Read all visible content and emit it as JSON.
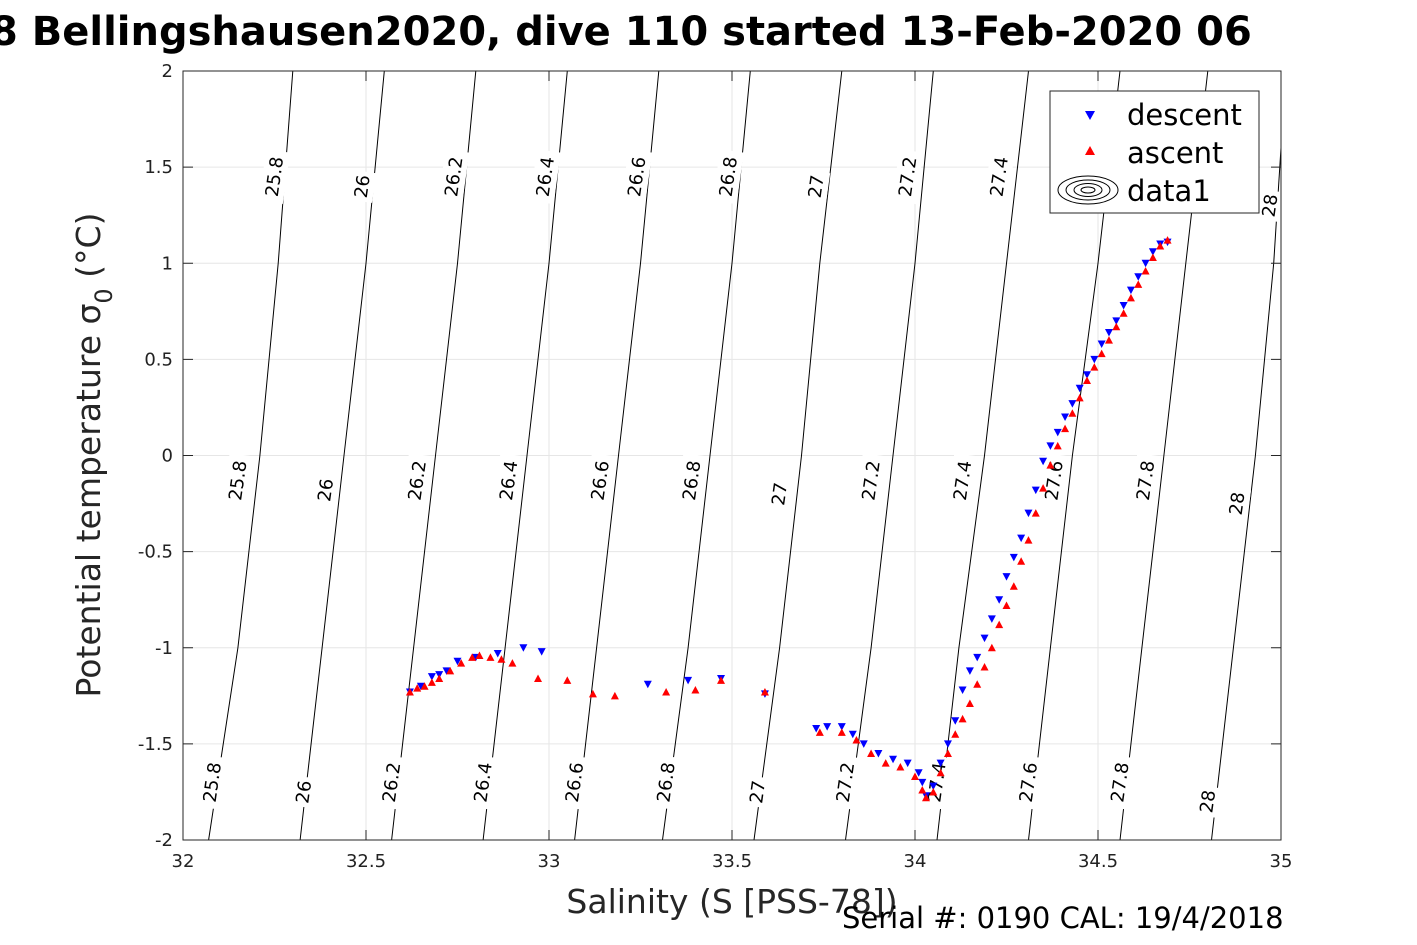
{
  "chart_data": {
    "type": "scatter",
    "title": "8 Bellingshausen2020, dive 110 started 13-Feb-2020 06",
    "xlabel": "Salinity (S [PSS-78])",
    "ylabel": "Potential temperature σ",
    "ylabel_subscript": "0",
    "ylabel_unit": " (°C)",
    "xlim": [
      32,
      35
    ],
    "ylim": [
      -2,
      2
    ],
    "x_ticks": [
      32,
      32.5,
      33,
      33.5,
      34,
      34.5,
      35
    ],
    "y_ticks": [
      -2,
      -1.5,
      -1,
      -0.5,
      0,
      0.5,
      1,
      1.5,
      2
    ],
    "grid": true,
    "legend_position": "top-right",
    "legend": [
      "descent",
      "ascent",
      "data1"
    ],
    "density_contours": [
      {
        "level": 25.8,
        "points": [
          [
            32.07,
            -2
          ],
          [
            32.15,
            -1.0
          ],
          [
            32.21,
            0.0
          ],
          [
            32.26,
            1.0
          ],
          [
            32.3,
            2.0
          ]
        ]
      },
      {
        "level": 26.0,
        "points": [
          [
            32.32,
            -2
          ],
          [
            32.38,
            -1.0
          ],
          [
            32.44,
            0.0
          ],
          [
            32.5,
            1.0
          ],
          [
            32.55,
            2.0
          ]
        ]
      },
      {
        "level": 26.2,
        "points": [
          [
            32.57,
            -2
          ],
          [
            32.63,
            -1.0
          ],
          [
            32.69,
            0.0
          ],
          [
            32.75,
            1.0
          ],
          [
            32.8,
            2.0
          ]
        ]
      },
      {
        "level": 26.4,
        "points": [
          [
            32.82,
            -2
          ],
          [
            32.88,
            -1.0
          ],
          [
            32.94,
            0.0
          ],
          [
            33.0,
            1.0
          ],
          [
            33.05,
            2.0
          ]
        ]
      },
      {
        "level": 26.6,
        "points": [
          [
            33.07,
            -2
          ],
          [
            33.13,
            -1.0
          ],
          [
            33.19,
            0.0
          ],
          [
            33.25,
            1.0
          ],
          [
            33.3,
            2.0
          ]
        ]
      },
      {
        "level": 26.8,
        "points": [
          [
            33.31,
            -2
          ],
          [
            33.38,
            -1.0
          ],
          [
            33.44,
            0.0
          ],
          [
            33.5,
            1.0
          ],
          [
            33.55,
            2.0
          ]
        ]
      },
      {
        "level": 27.0,
        "points": [
          [
            33.56,
            -2
          ],
          [
            33.63,
            -1.0
          ],
          [
            33.69,
            0.0
          ],
          [
            33.74,
            1.0
          ],
          [
            33.8,
            2.0
          ]
        ]
      },
      {
        "level": 27.2,
        "points": [
          [
            33.81,
            -2
          ],
          [
            33.88,
            -1.0
          ],
          [
            33.94,
            0.0
          ],
          [
            34.0,
            1.0
          ],
          [
            34.05,
            2.0
          ]
        ]
      },
      {
        "level": 27.4,
        "points": [
          [
            34.06,
            -2
          ],
          [
            34.12,
            -1.0
          ],
          [
            34.19,
            0.0
          ],
          [
            34.25,
            1.0
          ],
          [
            34.31,
            2.0
          ]
        ]
      },
      {
        "level": 27.6,
        "points": [
          [
            34.31,
            -2
          ],
          [
            34.37,
            -1.0
          ],
          [
            34.43,
            0.0
          ],
          [
            34.5,
            1.0
          ],
          [
            34.56,
            2.0
          ]
        ]
      },
      {
        "level": 27.8,
        "points": [
          [
            34.56,
            -2
          ],
          [
            34.62,
            -1.0
          ],
          [
            34.68,
            0.0
          ],
          [
            34.74,
            1.0
          ],
          [
            34.8,
            2.0
          ]
        ]
      },
      {
        "level": 28.0,
        "points": [
          [
            34.81,
            -2
          ],
          [
            34.87,
            -1.0
          ],
          [
            34.93,
            0.0
          ],
          [
            34.98,
            1.0
          ],
          [
            35.0,
            1.6
          ]
        ]
      }
    ],
    "contour_labels": [
      {
        "text": "25.8",
        "x": 32.08,
        "y": -1.7
      },
      {
        "text": "26",
        "x": 32.33,
        "y": -1.75
      },
      {
        "text": "26.2",
        "x": 32.57,
        "y": -1.7
      },
      {
        "text": "26.4",
        "x": 32.82,
        "y": -1.7
      },
      {
        "text": "26.6",
        "x": 33.07,
        "y": -1.7
      },
      {
        "text": "26.8",
        "x": 33.32,
        "y": -1.7
      },
      {
        "text": "27",
        "x": 33.57,
        "y": -1.75
      },
      {
        "text": "27.2",
        "x": 33.81,
        "y": -1.7
      },
      {
        "text": "27.4",
        "x": 34.06,
        "y": -1.7
      },
      {
        "text": "27.6",
        "x": 34.31,
        "y": -1.7
      },
      {
        "text": "27.8",
        "x": 34.56,
        "y": -1.7
      },
      {
        "text": "28",
        "x": 34.8,
        "y": -1.8
      },
      {
        "text": "25.8",
        "x": 32.15,
        "y": -0.13
      },
      {
        "text": "26",
        "x": 32.39,
        "y": -0.18
      },
      {
        "text": "26.2",
        "x": 32.64,
        "y": -0.13
      },
      {
        "text": "26.4",
        "x": 32.89,
        "y": -0.13
      },
      {
        "text": "26.6",
        "x": 33.14,
        "y": -0.13
      },
      {
        "text": "26.8",
        "x": 33.39,
        "y": -0.13
      },
      {
        "text": "27",
        "x": 33.63,
        "y": -0.2
      },
      {
        "text": "27.2",
        "x": 33.88,
        "y": -0.13
      },
      {
        "text": "27.4",
        "x": 34.13,
        "y": -0.13
      },
      {
        "text": "27.6",
        "x": 34.38,
        "y": -0.13
      },
      {
        "text": "27.8",
        "x": 34.63,
        "y": -0.13
      },
      {
        "text": "28",
        "x": 34.88,
        "y": -0.25
      },
      {
        "text": "25.8",
        "x": 32.25,
        "y": 1.45
      },
      {
        "text": "26",
        "x": 32.49,
        "y": 1.4
      },
      {
        "text": "26.2",
        "x": 32.74,
        "y": 1.45
      },
      {
        "text": "26.4",
        "x": 32.99,
        "y": 1.45
      },
      {
        "text": "26.6",
        "x": 33.24,
        "y": 1.45
      },
      {
        "text": "26.8",
        "x": 33.49,
        "y": 1.45
      },
      {
        "text": "27",
        "x": 33.73,
        "y": 1.4
      },
      {
        "text": "27.2",
        "x": 33.98,
        "y": 1.45
      },
      {
        "text": "27.4",
        "x": 34.23,
        "y": 1.45
      },
      {
        "text": "28",
        "x": 34.97,
        "y": 1.3
      }
    ],
    "series": [
      {
        "name": "descent",
        "color": "#0000ff",
        "marker": "triangle-down",
        "points": [
          [
            32.62,
            -1.23
          ],
          [
            32.65,
            -1.2
          ],
          [
            32.68,
            -1.15
          ],
          [
            32.7,
            -1.14
          ],
          [
            32.72,
            -1.12
          ],
          [
            32.75,
            -1.07
          ],
          [
            32.8,
            -1.05
          ],
          [
            32.86,
            -1.03
          ],
          [
            32.93,
            -1.0
          ],
          [
            32.98,
            -1.02
          ],
          [
            33.27,
            -1.19
          ],
          [
            33.38,
            -1.17
          ],
          [
            33.47,
            -1.16
          ],
          [
            33.59,
            -1.24
          ],
          [
            33.73,
            -1.42
          ],
          [
            33.76,
            -1.41
          ],
          [
            33.8,
            -1.41
          ],
          [
            33.83,
            -1.45
          ],
          [
            33.86,
            -1.5
          ],
          [
            33.9,
            -1.55
          ],
          [
            33.94,
            -1.58
          ],
          [
            33.98,
            -1.6
          ],
          [
            34.01,
            -1.65
          ],
          [
            34.02,
            -1.7
          ],
          [
            34.03,
            -1.77
          ],
          [
            34.05,
            -1.72
          ],
          [
            34.07,
            -1.6
          ],
          [
            34.09,
            -1.5
          ],
          [
            34.11,
            -1.38
          ],
          [
            34.13,
            -1.22
          ],
          [
            34.15,
            -1.12
          ],
          [
            34.17,
            -1.05
          ],
          [
            34.19,
            -0.95
          ],
          [
            34.21,
            -0.85
          ],
          [
            34.23,
            -0.75
          ],
          [
            34.25,
            -0.63
          ],
          [
            34.27,
            -0.53
          ],
          [
            34.29,
            -0.43
          ],
          [
            34.31,
            -0.3
          ],
          [
            34.33,
            -0.18
          ],
          [
            34.35,
            -0.03
          ],
          [
            34.37,
            0.05
          ],
          [
            34.39,
            0.12
          ],
          [
            34.41,
            0.2
          ],
          [
            34.43,
            0.27
          ],
          [
            34.45,
            0.35
          ],
          [
            34.47,
            0.42
          ],
          [
            34.49,
            0.5
          ],
          [
            34.51,
            0.58
          ],
          [
            34.53,
            0.64
          ],
          [
            34.55,
            0.7
          ],
          [
            34.57,
            0.78
          ],
          [
            34.59,
            0.86
          ],
          [
            34.61,
            0.93
          ],
          [
            34.63,
            1.0
          ],
          [
            34.65,
            1.06
          ],
          [
            34.67,
            1.1
          ],
          [
            34.69,
            1.11
          ]
        ]
      },
      {
        "name": "ascent",
        "color": "#ff0000",
        "marker": "triangle-up",
        "points": [
          [
            32.62,
            -1.23
          ],
          [
            32.64,
            -1.21
          ],
          [
            32.66,
            -1.2
          ],
          [
            32.68,
            -1.18
          ],
          [
            32.7,
            -1.16
          ],
          [
            32.73,
            -1.12
          ],
          [
            32.76,
            -1.08
          ],
          [
            32.79,
            -1.05
          ],
          [
            32.81,
            -1.04
          ],
          [
            32.84,
            -1.05
          ],
          [
            32.87,
            -1.06
          ],
          [
            32.9,
            -1.08
          ],
          [
            32.97,
            -1.16
          ],
          [
            33.05,
            -1.17
          ],
          [
            33.12,
            -1.24
          ],
          [
            33.18,
            -1.25
          ],
          [
            33.32,
            -1.23
          ],
          [
            33.4,
            -1.22
          ],
          [
            33.47,
            -1.17
          ],
          [
            33.59,
            -1.23
          ],
          [
            33.74,
            -1.44
          ],
          [
            33.8,
            -1.44
          ],
          [
            33.84,
            -1.48
          ],
          [
            33.88,
            -1.55
          ],
          [
            33.92,
            -1.6
          ],
          [
            33.96,
            -1.62
          ],
          [
            34.0,
            -1.67
          ],
          [
            34.02,
            -1.74
          ],
          [
            34.03,
            -1.78
          ],
          [
            34.05,
            -1.75
          ],
          [
            34.07,
            -1.65
          ],
          [
            34.09,
            -1.55
          ],
          [
            34.11,
            -1.45
          ],
          [
            34.13,
            -1.37
          ],
          [
            34.15,
            -1.29
          ],
          [
            34.17,
            -1.19
          ],
          [
            34.19,
            -1.1
          ],
          [
            34.21,
            -1.0
          ],
          [
            34.23,
            -0.88
          ],
          [
            34.25,
            -0.78
          ],
          [
            34.27,
            -0.68
          ],
          [
            34.29,
            -0.55
          ],
          [
            34.31,
            -0.44
          ],
          [
            34.33,
            -0.3
          ],
          [
            34.35,
            -0.17
          ],
          [
            34.37,
            -0.05
          ],
          [
            34.39,
            0.05
          ],
          [
            34.41,
            0.14
          ],
          [
            34.43,
            0.22
          ],
          [
            34.45,
            0.3
          ],
          [
            34.47,
            0.39
          ],
          [
            34.49,
            0.46
          ],
          [
            34.51,
            0.53
          ],
          [
            34.53,
            0.6
          ],
          [
            34.55,
            0.67
          ],
          [
            34.57,
            0.74
          ],
          [
            34.59,
            0.82
          ],
          [
            34.61,
            0.89
          ],
          [
            34.63,
            0.96
          ],
          [
            34.65,
            1.03
          ],
          [
            34.67,
            1.09
          ],
          [
            34.69,
            1.12
          ]
        ]
      }
    ]
  },
  "footer": {
    "serial_text": "Serial #: 0190  CAL: 19/4/2018"
  },
  "colors": {
    "grid": "#e6e6e6",
    "axis": "#262626",
    "descent": "#0000ff",
    "ascent": "#ff0000"
  }
}
